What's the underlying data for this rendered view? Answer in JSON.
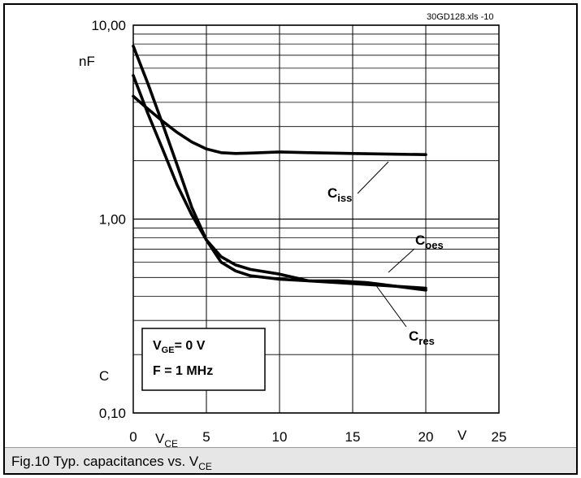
{
  "chart_data": {
    "type": "line",
    "file_label": "30GD128.xls  -10",
    "caption": {
      "text": "Fig.10 Typ. capacitances vs. V",
      "sub": "CE"
    },
    "y_axis": {
      "scale": "log",
      "range": [
        0.1,
        10
      ],
      "tick_labels": [
        "0,10",
        "1,00",
        "10,00"
      ],
      "unit_label": "nF",
      "symbol_label": "C"
    },
    "x_axis": {
      "range": [
        0,
        25
      ],
      "tick_values": [
        0,
        5,
        10,
        15,
        20,
        25
      ],
      "tick_labels": [
        "0",
        "5",
        "10",
        "15",
        "20",
        "25"
      ],
      "label_main": "V",
      "label_sub": "CE",
      "unit_label": "V"
    },
    "grid": true,
    "legend_box": {
      "line1": {
        "main": "V",
        "sub": "GE",
        "rest": "= 0 V"
      },
      "line2": "F =  1 MHz"
    },
    "series": [
      {
        "name": "Ciss",
        "label_main": "C",
        "label_sub": "iss",
        "points": [
          [
            0,
            4.3
          ],
          [
            1,
            3.7
          ],
          [
            2,
            3.2
          ],
          [
            3,
            2.8
          ],
          [
            4,
            2.5
          ],
          [
            5,
            2.3
          ],
          [
            6,
            2.2
          ],
          [
            7,
            2.18
          ],
          [
            8,
            2.19
          ],
          [
            10,
            2.22
          ],
          [
            12,
            2.2
          ],
          [
            15,
            2.18
          ],
          [
            18,
            2.16
          ],
          [
            20,
            2.15
          ]
        ]
      },
      {
        "name": "Coes",
        "label_main": "C",
        "label_sub": "oes",
        "points": [
          [
            0,
            5.5
          ],
          [
            1,
            3.5
          ],
          [
            2,
            2.3
          ],
          [
            3,
            1.5
          ],
          [
            4,
            1.05
          ],
          [
            5,
            0.78
          ],
          [
            6,
            0.64
          ],
          [
            7,
            0.58
          ],
          [
            8,
            0.55
          ],
          [
            10,
            0.52
          ],
          [
            12,
            0.48
          ],
          [
            14,
            0.47
          ],
          [
            16,
            0.46
          ],
          [
            18,
            0.45
          ],
          [
            20,
            0.43
          ]
        ]
      },
      {
        "name": "Cres",
        "label_main": "C",
        "label_sub": "res",
        "points": [
          [
            0,
            7.8
          ],
          [
            1,
            5.0
          ],
          [
            2,
            3.1
          ],
          [
            3,
            1.9
          ],
          [
            4,
            1.15
          ],
          [
            5,
            0.78
          ],
          [
            6,
            0.6
          ],
          [
            7,
            0.54
          ],
          [
            8,
            0.51
          ],
          [
            10,
            0.49
          ],
          [
            12,
            0.48
          ],
          [
            14,
            0.48
          ],
          [
            16,
            0.47
          ],
          [
            18,
            0.45
          ],
          [
            20,
            0.44
          ]
        ]
      }
    ]
  }
}
